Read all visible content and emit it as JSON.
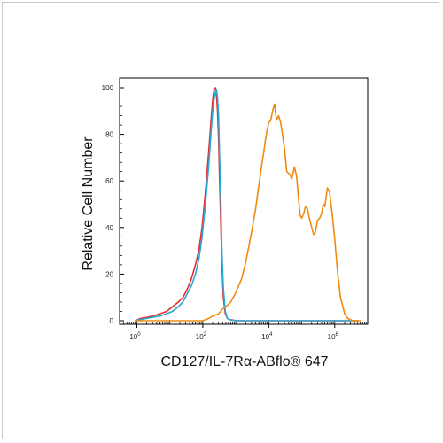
{
  "chart_data": {
    "type": "line",
    "title": "",
    "xlabel": "CD127/IL-7Rα-ABflo® 647",
    "ylabel": "Relative Cell Number",
    "x_scale": "log",
    "xlim": [
      0.3,
      10000000
    ],
    "ylim": [
      0,
      100
    ],
    "x_ticks": [
      {
        "value": 1,
        "base": "10",
        "exp": "0"
      },
      {
        "value": 100,
        "base": "10",
        "exp": "2"
      },
      {
        "value": 10000,
        "base": "10",
        "exp": "4"
      },
      {
        "value": 1000000,
        "base": "10",
        "exp": "6"
      }
    ],
    "y_ticks": [
      "0",
      "20",
      "40",
      "60",
      "80",
      "100"
    ],
    "grid": false,
    "series": [
      {
        "color": "#e03030",
        "x": [
          0.9,
          1.3,
          2,
          3,
          5,
          8,
          12,
          18,
          25,
          35,
          45,
          60,
          75,
          95,
          120,
          150,
          180,
          200,
          220,
          240,
          260,
          280,
          300,
          320,
          350,
          380,
          420,
          480,
          560,
          650,
          800,
          1000,
          1500,
          3000,
          10000,
          100000,
          1000000,
          5000000
        ],
        "y": [
          0,
          1,
          1.5,
          2,
          3,
          4,
          6,
          8,
          10,
          14,
          18,
          24,
          30,
          40,
          55,
          72,
          87,
          95,
          99,
          100,
          97,
          90,
          78,
          62,
          42,
          24,
          10,
          3,
          1,
          0.5,
          0.3,
          0,
          0,
          0,
          0,
          0,
          0,
          0
        ]
      },
      {
        "color": "#29a8d8",
        "x": [
          0.9,
          1.3,
          2,
          3,
          5,
          8,
          12,
          18,
          25,
          35,
          45,
          60,
          75,
          95,
          120,
          150,
          180,
          200,
          220,
          240,
          260,
          280,
          300,
          320,
          350,
          380,
          420,
          480,
          560,
          650,
          800,
          1000,
          1500,
          3000,
          10000,
          100000,
          1000000,
          5000000
        ],
        "y": [
          0,
          0.5,
          1,
          1.5,
          2,
          3,
          4,
          6,
          8,
          12,
          15,
          20,
          26,
          36,
          50,
          66,
          82,
          90,
          95,
          98,
          99,
          96,
          88,
          72,
          52,
          30,
          14,
          4,
          1,
          0.5,
          0.2,
          0,
          0,
          0,
          0,
          0,
          0,
          0
        ]
      },
      {
        "color": "#f08a10",
        "x": [
          0.9,
          10,
          50,
          100,
          150,
          200,
          300,
          400,
          500,
          700,
          1000,
          1500,
          2000,
          2500,
          3000,
          4000,
          5000,
          6000,
          7000,
          8000,
          9000,
          10000,
          11500,
          13000,
          15000,
          17000,
          20000,
          23000,
          26000,
          30000,
          35000,
          42000,
          50000,
          60000,
          70000,
          80000,
          90000,
          100000,
          115000,
          130000,
          150000,
          170000,
          200000,
          230000,
          260000,
          300000,
          350000,
          400000,
          450000,
          500000,
          600000,
          700000,
          850000,
          1000000,
          1200000,
          1500000,
          2000000,
          2500000,
          3000000,
          3500000,
          4000000,
          6000000
        ],
        "y": [
          0,
          0,
          0,
          0,
          1,
          2,
          3,
          5,
          6,
          8,
          12,
          18,
          25,
          32,
          38,
          48,
          58,
          66,
          72,
          78,
          82,
          85,
          86,
          90,
          93,
          86,
          88,
          85,
          80,
          74,
          64,
          63,
          61,
          66,
          62,
          52,
          45,
          44,
          46,
          49,
          48,
          44,
          40,
          37,
          38,
          43,
          44,
          46,
          50,
          49,
          57,
          55,
          45,
          35,
          22,
          10,
          3,
          1,
          0.5,
          0,
          0,
          0
        ]
      }
    ]
  }
}
